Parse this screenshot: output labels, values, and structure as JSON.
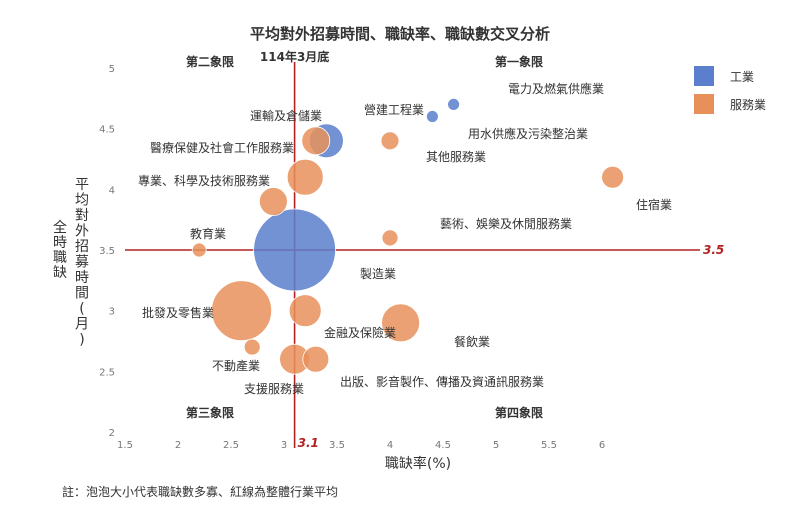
{
  "chart_data": {
    "type": "scatter",
    "title": "平均對外招募時間、職缺率、職缺數交叉分析",
    "xlabel": "職缺率(%)",
    "ylabel_left": "全時職缺",
    "ylabel_right": "平均對外招募時間(月)",
    "xlim": [
      1.5,
      6.5
    ],
    "ylim": [
      2,
      5
    ],
    "x_ticks": [
      "1.5",
      "2",
      "2.5",
      "3",
      "3.5",
      "4",
      "4.5",
      "5",
      "5.5",
      "6"
    ],
    "y_ticks": [
      "2",
      "2.5",
      "3",
      "3.5",
      "4",
      "4.5",
      "5"
    ],
    "ref_lines": {
      "x": 3.1,
      "x_label": "3.1",
      "y": 3.5,
      "y_label": "3.5",
      "x_top_label": "114年3月底",
      "color": "#b22222"
    },
    "quadrants": {
      "q1": "第一象限",
      "q2": "第二象限",
      "q3": "第三象限",
      "q4": "第四象限"
    },
    "grid": false,
    "legend_position": "top-right",
    "series": [
      {
        "name": "工業",
        "color": "#5b7fcd",
        "points": [
          {
            "label": "製造業",
            "x": 3.1,
            "y": 3.5,
            "r": 41
          },
          {
            "label": "營建工程業",
            "x": 3.4,
            "y": 4.4,
            "r": 17
          },
          {
            "label": "電力及燃氣供應業",
            "x": 4.6,
            "y": 4.7,
            "r": 6
          },
          {
            "label": "用水供應及污染整治業",
            "x": 4.4,
            "y": 4.6,
            "r": 6
          }
        ]
      },
      {
        "name": "服務業",
        "color": "#e8905a",
        "points": [
          {
            "label": "運輸及倉儲業",
            "x": 3.3,
            "y": 4.4,
            "r": 14
          },
          {
            "label": "醫療保健及社會工作服務業",
            "x": 3.2,
            "y": 4.1,
            "r": 18
          },
          {
            "label": "專業、科學及技術服務業",
            "x": 2.9,
            "y": 3.9,
            "r": 14
          },
          {
            "label": "教育業",
            "x": 2.2,
            "y": 3.5,
            "r": 7
          },
          {
            "label": "批發及零售業",
            "x": 2.6,
            "y": 3.0,
            "r": 30
          },
          {
            "label": "不動產業",
            "x": 2.7,
            "y": 2.7,
            "r": 8
          },
          {
            "label": "支援服務業",
            "x": 3.1,
            "y": 2.6,
            "r": 15
          },
          {
            "label": "金融及保險業",
            "x": 3.2,
            "y": 3.0,
            "r": 16
          },
          {
            "label": "出版、影音製作、傳播及資通訊服務業",
            "x": 3.3,
            "y": 2.6,
            "r": 13
          },
          {
            "label": "其他服務業",
            "x": 4.0,
            "y": 4.4,
            "r": 9
          },
          {
            "label": "藝術、娛樂及休閒服務業",
            "x": 4.0,
            "y": 3.6,
            "r": 8
          },
          {
            "label": "餐飲業",
            "x": 4.1,
            "y": 2.9,
            "r": 19
          },
          {
            "label": "住宿業",
            "x": 6.1,
            "y": 4.1,
            "r": 11
          }
        ]
      }
    ],
    "note": "註：泡泡大小代表職缺數多寡、紅線為整體行業平均"
  }
}
